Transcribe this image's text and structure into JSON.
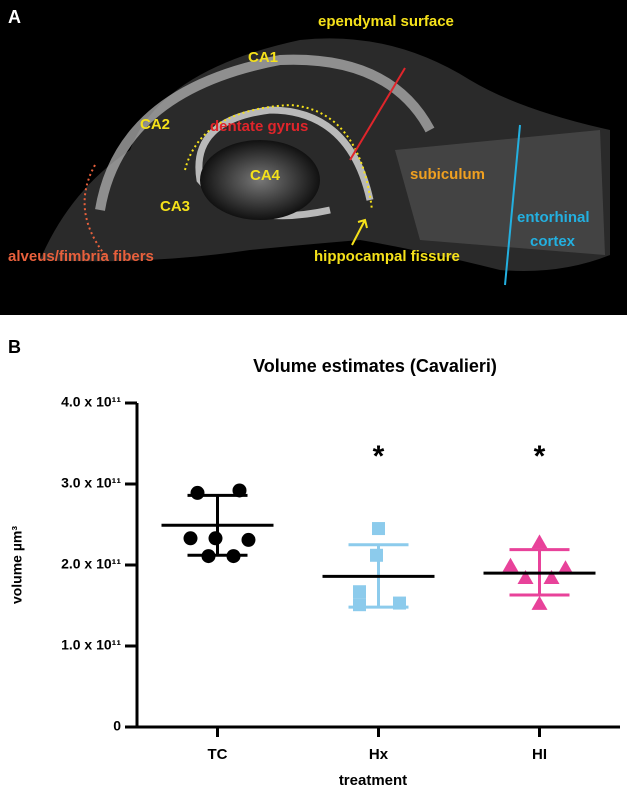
{
  "panel_a": {
    "letter": "A",
    "labels": {
      "ependymal": "ependymal surface",
      "ca1": "CA1",
      "ca2": "CA2",
      "ca3": "CA3",
      "ca4": "CA4",
      "dentate": "dentate gyrus",
      "subiculum": "subiculum",
      "entorhinal": [
        "entorhinal",
        "cortex"
      ],
      "fissure": "hippocampal fissure",
      "alveus": "alveus/fimbria fibers"
    }
  },
  "panel_b": {
    "letter": "B"
  },
  "chart_data": {
    "type": "dot",
    "title": "Volume estimates (Cavalieri)",
    "y_label": "volume µm³",
    "x_label": "treatment",
    "categories": [
      "TC",
      "Hx",
      "HI"
    ],
    "colors": [
      "#000000",
      "#8ccbec",
      "#e8429a"
    ],
    "markers": [
      "circle",
      "square",
      "triangle"
    ],
    "points": [
      [
        289000000000,
        292000000000,
        233000000000,
        231000000000,
        211000000000,
        211000000000,
        233000000000
      ],
      [
        245000000000,
        212000000000,
        167000000000,
        151000000000,
        153000000000
      ],
      [
        228000000000,
        199000000000,
        196000000000,
        184000000000,
        184000000000,
        152000000000
      ]
    ],
    "means": [
      249000000000,
      186000000000,
      190000000000
    ],
    "err_high": [
      286000000000,
      225000000000,
      219000000000
    ],
    "err_low": [
      212000000000,
      148000000000,
      163000000000
    ],
    "annotations": [
      null,
      "*",
      "*"
    ],
    "ylim": [
      0,
      400000000000
    ],
    "yticks": [
      0,
      {
        "value": 100000000000,
        "label": "1.0 x 10¹¹"
      },
      {
        "value": 200000000000,
        "label": "2.0 x 10¹¹"
      },
      {
        "value": 300000000000,
        "label": "3.0 x 10¹¹"
      },
      {
        "value": 400000000000,
        "label": "4.0 x 10¹¹"
      }
    ]
  }
}
